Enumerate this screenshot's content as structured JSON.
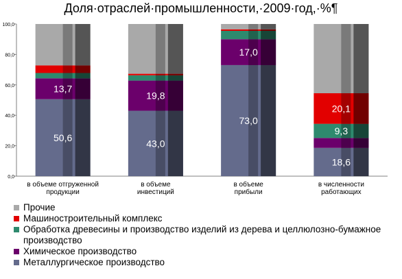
{
  "chart_data": {
    "type": "bar",
    "stacked": true,
    "title": "Доля·отраслей·промышленности,·2009·год,·%¶",
    "categories": [
      [
        "в объеме отгруженной",
        "продукции"
      ],
      [
        "в объеме",
        "инвестиций"
      ],
      [
        "в объеме",
        "прибыли"
      ],
      [
        "в численности",
        "работающих"
      ]
    ],
    "ylim": [
      0,
      100
    ],
    "yticks": [
      "0,0",
      "20,0",
      "40,0",
      "60,0",
      "80,0",
      "100,0"
    ],
    "series": [
      {
        "name": "Металлургическое производство",
        "color": "#646b8c",
        "values": [
          50.6,
          43.0,
          73.0,
          18.6
        ],
        "labels": [
          "50,6",
          "43,0",
          "73,0",
          "18,6"
        ]
      },
      {
        "name": "Химическое производство",
        "color": "#6b006b",
        "values": [
          13.7,
          19.8,
          17.0,
          6.5
        ],
        "labels": [
          "13,7",
          "19,8",
          "17,0",
          ""
        ]
      },
      {
        "name": "Обработка древесины и производство изделий из дерева и целлюлозно-бумажное производство",
        "color": "#2e8a6e",
        "values": [
          3.5,
          3.5,
          5.5,
          9.3
        ],
        "labels": [
          "",
          "",
          "",
          "9,3"
        ]
      },
      {
        "name": "Машиностроительный комплекс",
        "color": "#e20000",
        "values": [
          5.0,
          1.0,
          1.0,
          20.1
        ],
        "labels": [
          "",
          "",
          "",
          "20,1"
        ]
      },
      {
        "name": "Прочие",
        "color": "#a9a9a9",
        "values": [
          27.2,
          32.7,
          3.5,
          45.5
        ],
        "labels": [
          "",
          "",
          "",
          ""
        ]
      }
    ],
    "legend_order": [
      4,
      3,
      2,
      1,
      0
    ],
    "legend_position": "bottom",
    "grid": false
  }
}
